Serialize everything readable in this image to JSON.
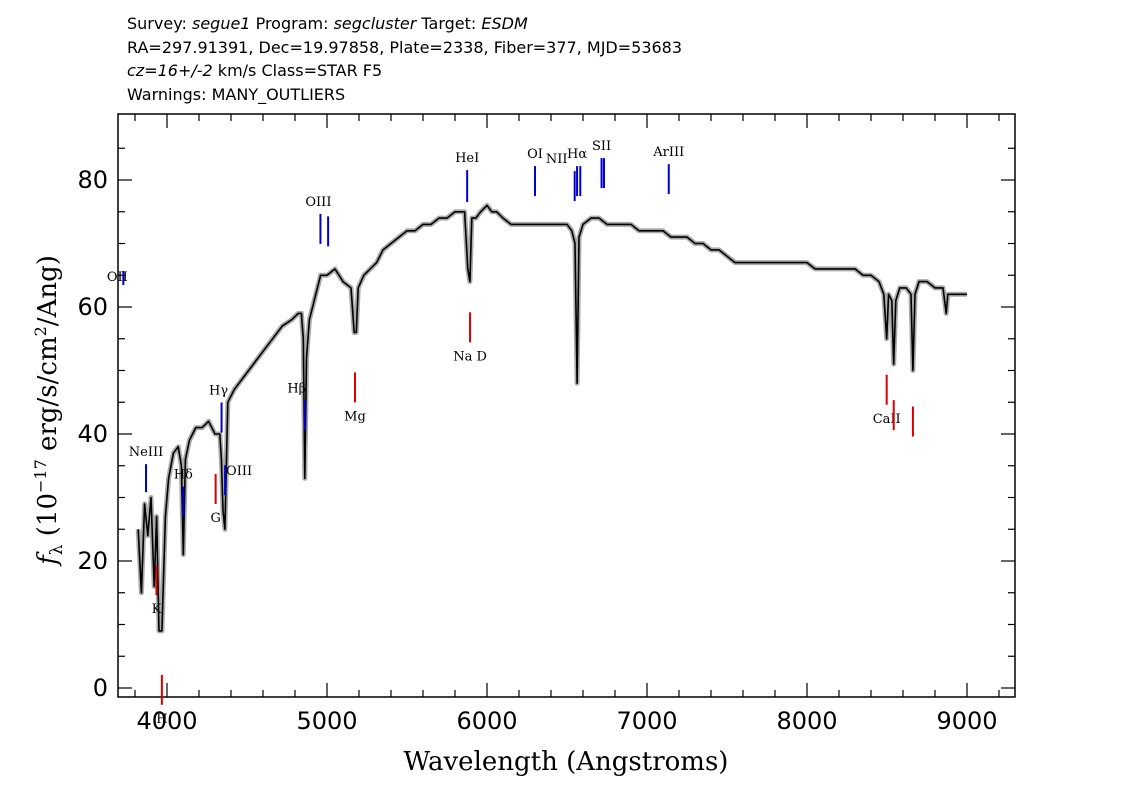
{
  "header": {
    "line1": {
      "survey_label": "Survey:",
      "survey": "segue1",
      "program_label": "Program:",
      "program": "segcluster",
      "target_label": "Target:",
      "target": "ESDM"
    },
    "line2": "RA=297.91391, Dec=19.97858, Plate=2338, Fiber=377, MJD=53683",
    "line3": {
      "cz": "cz=16+/-2",
      "rest": " km/s Class=STAR F5"
    },
    "line4": "Warnings: MANY_OUTLIERS"
  },
  "chart_data": {
    "type": "line",
    "xlabel": "Wavelength (Angstroms)",
    "ylabel": "f_λ (10^-17 erg/s/cm^2/Ang)",
    "xlim": [
      3700,
      9300
    ],
    "ylim": [
      -1.5,
      90
    ],
    "xticks": [
      4000,
      5000,
      6000,
      7000,
      8000,
      9000
    ],
    "yticks": [
      0,
      20,
      40,
      60,
      80
    ],
    "colors": {
      "spectrum": "#000000",
      "error_band": "#aaaaaa",
      "emission": "#0000cc",
      "absorption": "#dd0000"
    },
    "spectrum": {
      "x": [
        3820,
        3840,
        3860,
        3880,
        3900,
        3920,
        3935,
        3950,
        3968,
        3990,
        4010,
        4040,
        4070,
        4090,
        4102,
        4115,
        4140,
        4180,
        4220,
        4260,
        4300,
        4330,
        4340,
        4350,
        4362,
        4380,
        4420,
        4480,
        4540,
        4600,
        4660,
        4720,
        4780,
        4820,
        4840,
        4852,
        4861,
        4872,
        4890,
        4920,
        4960,
        5000,
        5050,
        5100,
        5150,
        5170,
        5183,
        5195,
        5230,
        5270,
        5310,
        5350,
        5400,
        5450,
        5500,
        5550,
        5600,
        5650,
        5700,
        5750,
        5800,
        5860,
        5880,
        5893,
        5905,
        5930,
        5960,
        6000,
        6030,
        6060,
        6100,
        6150,
        6200,
        6250,
        6300,
        6350,
        6400,
        6450,
        6500,
        6530,
        6550,
        6563,
        6575,
        6600,
        6650,
        6700,
        6750,
        6800,
        6850,
        6900,
        6950,
        7000,
        7050,
        7100,
        7150,
        7200,
        7250,
        7300,
        7350,
        7400,
        7450,
        7500,
        7550,
        7600,
        7650,
        7700,
        7750,
        7800,
        7850,
        7900,
        7950,
        8000,
        8050,
        8100,
        8150,
        8200,
        8250,
        8300,
        8350,
        8400,
        8450,
        8480,
        8498,
        8510,
        8530,
        8542,
        8555,
        8580,
        8620,
        8650,
        8662,
        8675,
        8700,
        8750,
        8800,
        8850,
        8870,
        8880,
        8900,
        8950,
        9000
      ],
      "y": [
        25,
        15,
        29,
        24,
        30,
        16,
        27,
        9,
        9,
        27,
        33,
        37,
        38,
        35,
        21,
        36,
        39,
        41,
        41,
        42,
        40,
        40,
        36,
        28,
        25,
        45,
        47,
        49,
        51,
        53,
        55,
        57,
        58,
        59,
        59,
        55,
        33,
        52,
        58,
        61,
        65,
        65,
        66,
        64,
        63,
        56,
        56,
        63,
        65,
        66,
        67,
        69,
        70,
        71,
        72,
        72,
        73,
        73,
        74,
        74,
        75,
        75,
        66,
        64,
        74,
        74,
        75,
        76,
        75,
        75,
        74,
        73,
        73,
        73,
        73,
        73,
        73,
        73,
        73,
        72,
        70,
        48,
        71,
        73,
        74,
        74,
        73,
        73,
        73,
        73,
        72,
        72,
        72,
        72,
        71,
        71,
        71,
        70,
        70,
        69,
        69,
        68,
        67,
        67,
        67,
        67,
        67,
        67,
        67,
        67,
        67,
        67,
        66,
        66,
        66,
        66,
        66,
        66,
        65,
        65,
        64,
        62,
        55,
        62,
        61,
        51,
        61,
        63,
        63,
        62,
        50,
        62,
        64,
        64,
        63,
        63,
        59,
        62,
        62,
        62,
        62
      ]
    },
    "emission_lines": [
      {
        "label": "OII",
        "x": 3727
      },
      {
        "label": "NeIII",
        "x": 3869
      },
      {
        "label": "Hδ",
        "x": 4102
      },
      {
        "label": "Hγ",
        "x": 4341
      },
      {
        "label": "OIII",
        "x": 4363
      },
      {
        "label": "Hβ",
        "x": 4861
      },
      {
        "label": "OIII",
        "x": 4959
      },
      {
        "label": "OIII",
        "x": 5007
      },
      {
        "label": "HeI",
        "x": 5876
      },
      {
        "label": "OI",
        "x": 6300
      },
      {
        "label": "NII",
        "x": 6548
      },
      {
        "label": "Hα",
        "x": 6563
      },
      {
        "label": "NII",
        "x": 6583
      },
      {
        "label": "SII",
        "x": 6716
      },
      {
        "label": "SII",
        "x": 6731
      },
      {
        "label": "ArIII",
        "x": 7136
      }
    ],
    "absorption_lines": [
      {
        "label": "K",
        "x": 3934
      },
      {
        "label": "H",
        "x": 3968
      },
      {
        "label": "G",
        "x": 4304
      },
      {
        "label": "Mg",
        "x": 5175
      },
      {
        "label": "Na D",
        "x": 5894
      },
      {
        "label": "CaII",
        "x": 8498
      },
      {
        "label": "CaII",
        "x": 8542
      },
      {
        "label": "CaII",
        "x": 8662
      }
    ]
  }
}
